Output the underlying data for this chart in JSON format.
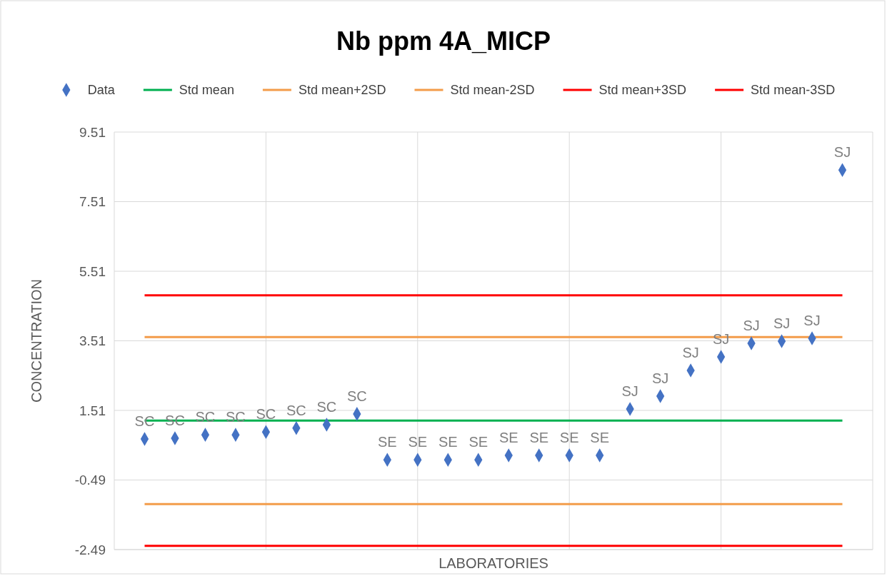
{
  "chart_data": {
    "type": "scatter",
    "title": "Nb ppm 4A_MICP",
    "xlabel": "LABORATORIES",
    "ylabel": "CONCENTRATION",
    "categories": [
      null,
      null,
      null,
      null,
      null,
      null,
      null,
      null,
      null,
      null,
      null,
      null,
      null,
      null,
      null,
      null,
      null,
      null,
      null,
      null,
      null,
      null,
      null,
      null
    ],
    "ylim": [
      -2.49,
      9.51
    ],
    "yticks": [
      -2.49,
      -0.49,
      1.51,
      3.51,
      5.51,
      7.51,
      9.51
    ],
    "tick_labels": "y",
    "grid": true,
    "legend": "top",
    "series": [
      {
        "name": "Data",
        "color": "#4472c4",
        "marker": "diamond",
        "values": [
          0.69,
          0.71,
          0.81,
          0.81,
          0.89,
          1.0,
          1.1,
          1.41,
          0.09,
          0.09,
          0.09,
          0.09,
          0.22,
          0.22,
          0.22,
          0.22,
          1.55,
          1.92,
          2.66,
          3.05,
          3.44,
          3.5,
          3.58,
          8.42
        ],
        "value_labels": [
          "SC",
          "SC",
          "SC",
          "SC",
          "SC",
          "SC",
          "SC",
          "SC",
          "SE",
          "SE",
          "SE",
          "SE",
          "SE",
          "SE",
          "SE",
          "SE",
          "SJ",
          "SJ",
          "SJ",
          "SJ",
          "SJ",
          "SJ",
          "SJ",
          "SJ"
        ]
      },
      {
        "name": "Std mean",
        "type": "line",
        "marker": "none",
        "color": "#00b050",
        "values": [
          1.22,
          1.22,
          1.22,
          1.22,
          1.22,
          1.22,
          1.22,
          1.22,
          1.22,
          1.22,
          1.22,
          1.22,
          1.22,
          1.22,
          1.22,
          1.22,
          1.22,
          1.22,
          1.22,
          1.22,
          1.22,
          1.22,
          1.22,
          1.22
        ]
      },
      {
        "name": "Std mean+2SD",
        "type": "line",
        "marker": "none",
        "color": "#f39c4a",
        "values": [
          3.62,
          3.62,
          3.62,
          3.62,
          3.62,
          3.62,
          3.62,
          3.62,
          3.62,
          3.62,
          3.62,
          3.62,
          3.62,
          3.62,
          3.62,
          3.62,
          3.62,
          3.62,
          3.62,
          3.62,
          3.62,
          3.62,
          3.62,
          3.62
        ]
      },
      {
        "name": "Std mean-2SD",
        "type": "line",
        "marker": "none",
        "color": "#f39c4a",
        "values": [
          -1.18,
          -1.18,
          -1.18,
          -1.18,
          -1.18,
          -1.18,
          -1.18,
          -1.18,
          -1.18,
          -1.18,
          -1.18,
          -1.18,
          -1.18,
          -1.18,
          -1.18,
          -1.18,
          -1.18,
          -1.18,
          -1.18,
          -1.18,
          -1.18,
          -1.18,
          -1.18,
          -1.18
        ]
      },
      {
        "name": "Std mean+3SD",
        "type": "line",
        "marker": "none",
        "color": "#ff0000",
        "values": [
          4.82,
          4.82,
          4.82,
          4.82,
          4.82,
          4.82,
          4.82,
          4.82,
          4.82,
          4.82,
          4.82,
          4.82,
          4.82,
          4.82,
          4.82,
          4.82,
          4.82,
          4.82,
          4.82,
          4.82,
          4.82,
          4.82,
          4.82,
          4.82
        ]
      },
      {
        "name": "Std mean-3SD",
        "type": "line",
        "marker": "none",
        "color": "#ff0000",
        "values": [
          -2.38,
          -2.38,
          -2.38,
          -2.38,
          -2.38,
          -2.38,
          -2.38,
          -2.38,
          -2.38,
          -2.38,
          -2.38,
          -2.38,
          -2.38,
          -2.38,
          -2.38,
          -2.38,
          -2.38,
          -2.38,
          -2.38,
          -2.38,
          -2.38,
          -2.38,
          -2.38,
          -2.38
        ]
      }
    ]
  }
}
